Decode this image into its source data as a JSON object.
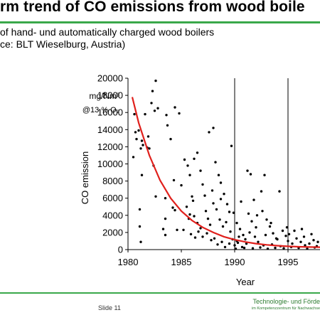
{
  "slide": {
    "title": "rm trend of CO emissions from wood boile",
    "subtitle_line1": "of hand- und automatically charged wood boilers",
    "subtitle_line2": "ce: BLT Wieselburg, Austria)",
    "slide_number": "Slide 11",
    "footer_line1": "Technologie- und Förde",
    "footer_line2": "im Kompetenzzentrum für Nachwachse",
    "accent_color": "#3aa84a"
  },
  "chart_data": {
    "type": "scatter",
    "title": "",
    "xlabel": "Year",
    "ylabel": "CO emission",
    "unit_line1": "mg/Nm³",
    "unit_line2": "@13 % O₂",
    "xlim": [
      1980,
      1998
    ],
    "ylim": [
      0,
      20000
    ],
    "xticks": [
      1980,
      1985,
      1990,
      1995
    ],
    "yticks": [
      0,
      2000,
      4000,
      6000,
      8000,
      10000,
      12000,
      14000,
      16000,
      18000,
      20000
    ],
    "grid_vertical": [
      1990,
      1995
    ],
    "point_color": "#000000",
    "trend_color": "#e0201c",
    "trend": {
      "x": [
        1980.4,
        1981,
        1982,
        1983,
        1984,
        1985,
        1986,
        1987,
        1988,
        1989,
        1990,
        1991,
        1992,
        1993,
        1994,
        1995,
        1996,
        1997,
        1998
      ],
      "y": [
        17800,
        14800,
        11000,
        8100,
        6000,
        4500,
        3400,
        2600,
        2000,
        1500,
        1150,
        900,
        700,
        560,
        460,
        380,
        330,
        300,
        280
      ]
    },
    "points": [
      [
        1980.6,
        15800
      ],
      [
        1980.7,
        13700
      ],
      [
        1980.5,
        10800
      ],
      [
        1980.8,
        12900
      ],
      [
        1981.0,
        13900
      ],
      [
        1981.2,
        11800
      ],
      [
        1981.3,
        12700
      ],
      [
        1981.4,
        12200
      ],
      [
        1981.6,
        15800
      ],
      [
        1981.8,
        11900
      ],
      [
        1982.0,
        11800
      ],
      [
        1981.9,
        13200
      ],
      [
        1982.2,
        17100
      ],
      [
        1982.3,
        18500
      ],
      [
        1982.6,
        19700
      ],
      [
        1982.5,
        16200
      ],
      [
        1982.8,
        16500
      ],
      [
        1981.3,
        8700
      ],
      [
        1981.1,
        4700
      ],
      [
        1981.1,
        2700
      ],
      [
        1981.2,
        900
      ],
      [
        1982.4,
        9800
      ],
      [
        1982.6,
        6200
      ],
      [
        1983.6,
        15700
      ],
      [
        1983.7,
        14500
      ],
      [
        1984.0,
        12900
      ],
      [
        1984.4,
        16600
      ],
      [
        1984.8,
        15900
      ],
      [
        1984.3,
        8100
      ],
      [
        1983.5,
        6000
      ],
      [
        1983.5,
        3600
      ],
      [
        1983.3,
        2400
      ],
      [
        1983.5,
        1700
      ],
      [
        1984.2,
        4900
      ],
      [
        1984.4,
        4600
      ],
      [
        1984.6,
        2300
      ],
      [
        1985.0,
        7500
      ],
      [
        1985.3,
        10500
      ],
      [
        1985.6,
        9800
      ],
      [
        1985.8,
        8700
      ],
      [
        1986.0,
        6200
      ],
      [
        1986.2,
        10600
      ],
      [
        1986.5,
        11300
      ],
      [
        1986.8,
        9200
      ],
      [
        1985.5,
        5000
      ],
      [
        1985.8,
        4100
      ],
      [
        1986.2,
        3900
      ],
      [
        1986.5,
        3100
      ],
      [
        1986.8,
        2500
      ],
      [
        1985.2,
        2300
      ],
      [
        1985.9,
        1800
      ],
      [
        1986.3,
        1400
      ],
      [
        1987.0,
        7600
      ],
      [
        1987.2,
        6300
      ],
      [
        1987.3,
        4500
      ],
      [
        1987.5,
        3600
      ],
      [
        1987.7,
        2900
      ],
      [
        1988.0,
        14200
      ],
      [
        1987.6,
        13700
      ],
      [
        1988.2,
        10200
      ],
      [
        1988.5,
        8700
      ],
      [
        1988.7,
        7800
      ],
      [
        1988.0,
        5400
      ],
      [
        1988.3,
        4700
      ],
      [
        1988.6,
        3500
      ],
      [
        1988.9,
        2700
      ],
      [
        1987.4,
        1900
      ],
      [
        1988.1,
        1300
      ],
      [
        1988.8,
        900
      ],
      [
        1989.0,
        6500
      ],
      [
        1989.3,
        5300
      ],
      [
        1989.5,
        4400
      ],
      [
        1989.7,
        12100
      ],
      [
        1989.2,
        3200
      ],
      [
        1989.6,
        2100
      ],
      [
        1989.8,
        1200
      ],
      [
        1990.0,
        500
      ],
      [
        1989.5,
        700
      ],
      [
        1990.2,
        3100
      ],
      [
        1990.5,
        2400
      ],
      [
        1990.8,
        1700
      ],
      [
        1991.0,
        1200
      ],
      [
        1990.3,
        800
      ],
      [
        1990.7,
        300
      ],
      [
        1991.2,
        9200
      ],
      [
        1991.5,
        8800
      ],
      [
        1991.8,
        5800
      ],
      [
        1991.3,
        4200
      ],
      [
        1991.6,
        3300
      ],
      [
        1992.0,
        2600
      ],
      [
        1991.9,
        1500
      ],
      [
        1992.2,
        900
      ],
      [
        1992.5,
        6800
      ],
      [
        1992.8,
        8700
      ],
      [
        1992.6,
        4500
      ],
      [
        1993.0,
        3500
      ],
      [
        1993.3,
        2700
      ],
      [
        1993.6,
        1900
      ],
      [
        1993.9,
        1300
      ],
      [
        1994.2,
        6800
      ],
      [
        1994.5,
        2200
      ],
      [
        1994.8,
        1600
      ],
      [
        1995.0,
        1000
      ],
      [
        1995.4,
        700
      ],
      [
        1995.8,
        1300
      ],
      [
        1996.2,
        900
      ],
      [
        1996.6,
        500
      ],
      [
        1997.0,
        700
      ],
      [
        1997.4,
        1100
      ],
      [
        1997.7,
        400
      ],
      [
        1990.1,
        100
      ],
      [
        1990.9,
        200
      ],
      [
        1991.7,
        150
      ],
      [
        1992.4,
        250
      ],
      [
        1993.1,
        100
      ],
      [
        1993.8,
        200
      ],
      [
        1994.6,
        150
      ],
      [
        1995.3,
        300
      ],
      [
        1996.0,
        200
      ],
      [
        1996.8,
        100
      ],
      [
        1997.5,
        250
      ],
      [
        1989.1,
        300
      ],
      [
        1988.4,
        600
      ],
      [
        1987.8,
        1100
      ],
      [
        1987.0,
        1500
      ],
      [
        1986.6,
        2100
      ],
      [
        1990.4,
        1500
      ],
      [
        1991.4,
        2000
      ],
      [
        1992.9,
        1700
      ],
      [
        1994.0,
        1200
      ],
      [
        1995.6,
        2200
      ],
      [
        1996.5,
        1500
      ],
      [
        1997.2,
        1800
      ],
      [
        1985.7,
        3600
      ],
      [
        1986.1,
        5700
      ],
      [
        1987.9,
        6900
      ],
      [
        1988.7,
        5900
      ],
      [
        1989.9,
        4300
      ],
      [
        1990.6,
        5600
      ],
      [
        1992.1,
        4000
      ],
      [
        1993.4,
        3100
      ],
      [
        1994.9,
        2600
      ],
      [
        1990.2,
        1000
      ],
      [
        1991.1,
        700
      ],
      [
        1992.7,
        500
      ],
      [
        1993.5,
        600
      ],
      [
        1994.3,
        400
      ],
      [
        1995.1,
        1800
      ],
      [
        1996.3,
        2400
      ],
      [
        1997.8,
        900
      ]
    ]
  }
}
